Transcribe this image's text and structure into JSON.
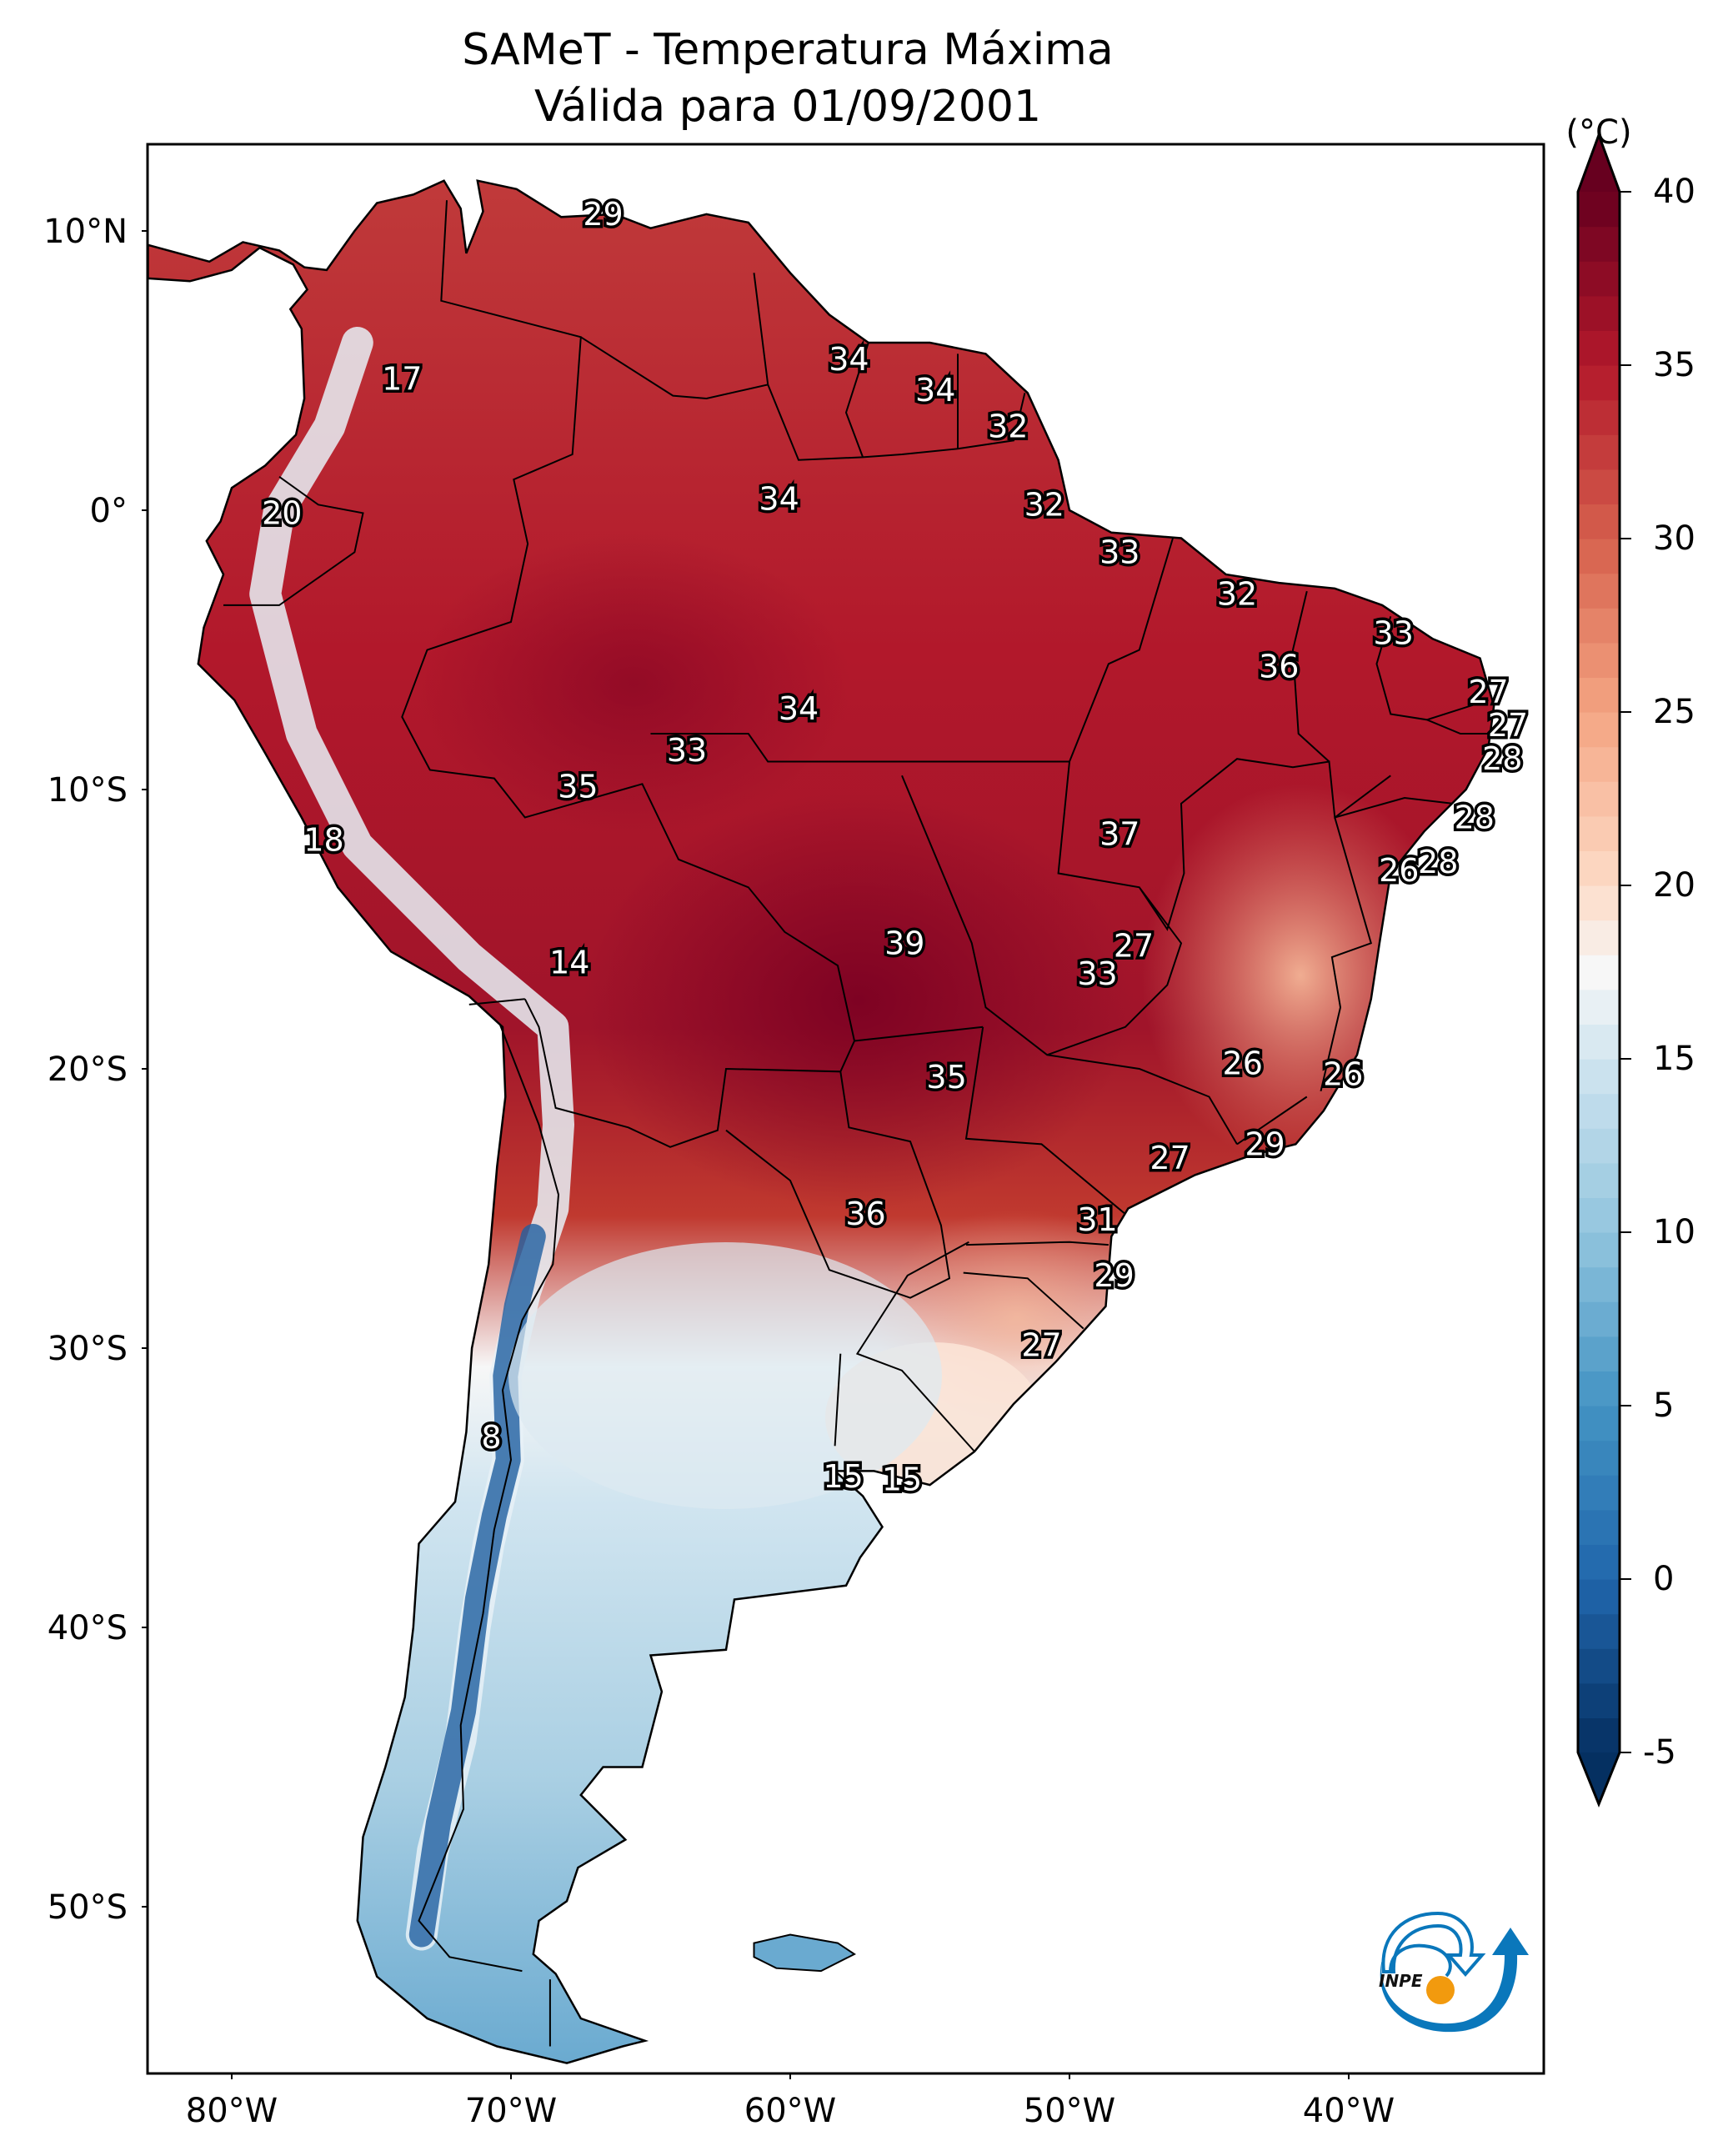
{
  "title": {
    "line1": "SAMeT - Temperatura Máxima",
    "line2": "Válida para 01/09/2001"
  },
  "chart_data": {
    "type": "heatmap",
    "subtype": "filled contour map (geographic)",
    "title": "SAMeT - Temperatura Máxima",
    "subtitle": "Válida para 01/09/2001",
    "variable": "Maximum temperature",
    "units": "°C",
    "colorbar": {
      "label": "(°C)",
      "colormap": "RdBu_r",
      "range": [
        -5,
        40
      ],
      "extend": "both",
      "ticks": [
        -5,
        0,
        5,
        10,
        15,
        20,
        25,
        30,
        35,
        40
      ],
      "tick_labels": [
        "-5",
        "0",
        "5",
        "10",
        "15",
        "20",
        "25",
        "30",
        "35",
        "40"
      ],
      "stops": [
        {
          "value": -5,
          "color": "#053061"
        },
        {
          "value": 0,
          "color": "#2166ac"
        },
        {
          "value": 5,
          "color": "#4393c3"
        },
        {
          "value": 10,
          "color": "#92c5de"
        },
        {
          "value": 15,
          "color": "#d1e5f0"
        },
        {
          "value": 17.5,
          "color": "#f7f7f7"
        },
        {
          "value": 20,
          "color": "#fddbc7"
        },
        {
          "value": 25,
          "color": "#f4a582"
        },
        {
          "value": 30,
          "color": "#d6604d"
        },
        {
          "value": 35,
          "color": "#b2182b"
        },
        {
          "value": 40,
          "color": "#67001f"
        }
      ]
    },
    "xaxis": {
      "ticks": [
        -80,
        -70,
        -60,
        -50,
        -40
      ],
      "tick_labels": [
        "80°W",
        "70°W",
        "60°W",
        "50°W",
        "40°W"
      ],
      "range": [
        -83,
        -33
      ]
    },
    "yaxis": {
      "ticks": [
        10,
        0,
        -10,
        -20,
        -30,
        -40,
        -50
      ],
      "tick_labels": [
        "10°N",
        "0°",
        "10°S",
        "20°S",
        "30°S",
        "40°S",
        "50°S"
      ],
      "range": [
        -56,
        13.1
      ]
    },
    "grid": false,
    "value_labels": [
      {
        "lon": -66.7,
        "lat": 10.6,
        "value": 29
      },
      {
        "lon": -73.9,
        "lat": 4.7,
        "value": 17
      },
      {
        "lon": -78.2,
        "lat": -0.1,
        "value": 20
      },
      {
        "lon": -57.9,
        "lat": 5.4,
        "value": 34
      },
      {
        "lon": -54.8,
        "lat": 4.3,
        "value": 34
      },
      {
        "lon": -52.2,
        "lat": 3.0,
        "value": 32
      },
      {
        "lon": -60.4,
        "lat": 0.4,
        "value": 34
      },
      {
        "lon": -50.9,
        "lat": 0.2,
        "value": 32
      },
      {
        "lon": -59.7,
        "lat": -7.1,
        "value": 34
      },
      {
        "lon": -48.2,
        "lat": -1.5,
        "value": 33
      },
      {
        "lon": -44.0,
        "lat": -3.0,
        "value": 32
      },
      {
        "lon": -38.4,
        "lat": -4.4,
        "value": 33
      },
      {
        "lon": -42.5,
        "lat": -5.6,
        "value": 36
      },
      {
        "lon": -35.0,
        "lat": -6.5,
        "value": 27
      },
      {
        "lon": -34.3,
        "lat": -7.7,
        "value": 27
      },
      {
        "lon": -34.5,
        "lat": -8.9,
        "value": 28
      },
      {
        "lon": -35.5,
        "lat": -11.0,
        "value": 28
      },
      {
        "lon": -36.8,
        "lat": -12.6,
        "value": 28
      },
      {
        "lon": -48.2,
        "lat": -11.6,
        "value": 37
      },
      {
        "lon": -63.7,
        "lat": -8.6,
        "value": 33
      },
      {
        "lon": -67.6,
        "lat": -9.9,
        "value": 35
      },
      {
        "lon": -76.7,
        "lat": -11.8,
        "value": 18
      },
      {
        "lon": -67.9,
        "lat": -16.2,
        "value": 14
      },
      {
        "lon": -55.9,
        "lat": -15.5,
        "value": 39
      },
      {
        "lon": -47.7,
        "lat": -15.6,
        "value": 27
      },
      {
        "lon": -49.0,
        "lat": -16.6,
        "value": 33
      },
      {
        "lon": -38.2,
        "lat": -12.9,
        "value": 26
      },
      {
        "lon": -54.4,
        "lat": -20.3,
        "value": 35
      },
      {
        "lon": -43.8,
        "lat": -19.8,
        "value": 26
      },
      {
        "lon": -40.2,
        "lat": -20.2,
        "value": 26
      },
      {
        "lon": -43.0,
        "lat": -22.7,
        "value": 29
      },
      {
        "lon": -46.4,
        "lat": -23.2,
        "value": 27
      },
      {
        "lon": -57.3,
        "lat": -25.2,
        "value": 36
      },
      {
        "lon": -49.0,
        "lat": -25.4,
        "value": 31
      },
      {
        "lon": -48.4,
        "lat": -27.4,
        "value": 29
      },
      {
        "lon": -51.0,
        "lat": -29.9,
        "value": 27
      },
      {
        "lon": -70.7,
        "lat": -33.2,
        "value": 8
      },
      {
        "lon": -58.1,
        "lat": -34.6,
        "value": 15
      },
      {
        "lon": -56.0,
        "lat": -34.7,
        "value": 15
      }
    ]
  },
  "logo": {
    "text": "INPE",
    "blue": "#0a77bb",
    "orange": "#f29a0e"
  }
}
